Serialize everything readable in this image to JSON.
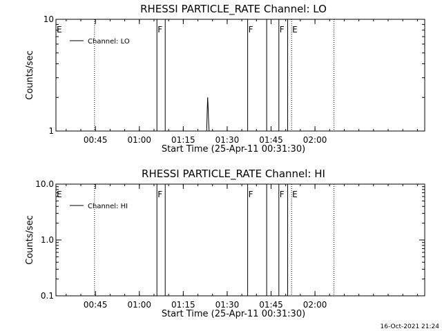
{
  "figure": {
    "timestamp": "16-Oct-2021 21:24",
    "colors": {
      "background": "#ffffff",
      "foreground": "#000000"
    }
  },
  "chart_data": [
    {
      "type": "line",
      "title": "RHESSI PARTICLE_RATE Channel: LO",
      "xlabel": "Start Time (25-Apr-11 00:31:30)",
      "ylabel": "Counts/sec",
      "xlim": [
        "00:31:30",
        "02:37:30"
      ],
      "ylim": [
        1,
        10
      ],
      "yscale": "log",
      "x_ticks": [
        "00:45",
        "01:00",
        "01:15",
        "01:30",
        "01:45",
        "02:00"
      ],
      "y_ticks": [
        {
          "value": 1,
          "label": "1"
        },
        {
          "value": 10,
          "label": "10"
        }
      ],
      "legend": {
        "position": "top-left",
        "entries": [
          "Channel: LO"
        ]
      },
      "series": [
        {
          "name": "Channel: LO",
          "x": [
            "01:23:00",
            "01:23:10",
            "01:23:20",
            "01:23:30",
            "01:23:40",
            "01:23:50"
          ],
          "y": [
            1,
            1.5,
            2.0,
            1.6,
            1.2,
            1
          ]
        }
      ],
      "solid_vlines": [
        "01:06:00",
        "01:08:50",
        "01:37:00",
        "01:43:30",
        "01:47:40",
        "01:50:40"
      ],
      "dotted_vlines": [
        "00:44:40",
        "01:52:00",
        "02:06:30"
      ],
      "markers": [
        {
          "label": "E",
          "x": "00:31:30"
        },
        {
          "label": "F",
          "x": "01:06:00"
        },
        {
          "label": "F",
          "x": "01:37:00"
        },
        {
          "label": "F",
          "x": "01:47:40"
        },
        {
          "label": "E",
          "x": "01:52:00"
        }
      ]
    },
    {
      "type": "line",
      "title": "RHESSI PARTICLE_RATE Channel: HI",
      "xlabel": "Start Time (25-Apr-11 00:31:30)",
      "ylabel": "Counts/sec",
      "xlim": [
        "00:31:30",
        "02:37:30"
      ],
      "ylim": [
        0.1,
        10
      ],
      "yscale": "log",
      "x_ticks": [
        "00:45",
        "01:00",
        "01:15",
        "01:30",
        "01:45",
        "02:00"
      ],
      "y_ticks": [
        {
          "value": 0.1,
          "label": "0.1"
        },
        {
          "value": 1,
          "label": "1.0"
        },
        {
          "value": 10,
          "label": "10.0"
        }
      ],
      "legend": {
        "position": "top-left",
        "entries": [
          "Channel: HI"
        ]
      },
      "series": [
        {
          "name": "Channel: HI",
          "x": [],
          "y": []
        }
      ],
      "solid_vlines": [
        "01:06:00",
        "01:08:50",
        "01:37:00",
        "01:43:30",
        "01:47:40",
        "01:50:40"
      ],
      "dotted_vlines": [
        "00:44:40",
        "01:52:00",
        "02:06:30"
      ],
      "markers": [
        {
          "label": "E",
          "x": "00:31:30"
        },
        {
          "label": "F",
          "x": "01:06:00"
        },
        {
          "label": "F",
          "x": "01:37:00"
        },
        {
          "label": "F",
          "x": "01:47:40"
        },
        {
          "label": "E",
          "x": "01:52:00"
        }
      ]
    }
  ]
}
